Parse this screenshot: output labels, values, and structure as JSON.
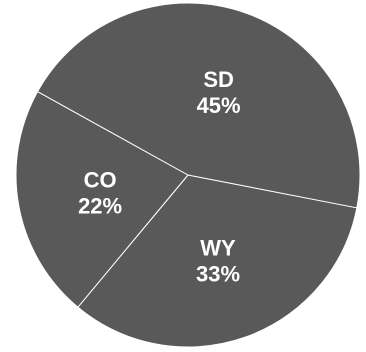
{
  "colors": {
    "slice_fill": "#595959",
    "slice_stroke": "#ffffff",
    "label_color": "#ffffff",
    "background": "#ffffff"
  },
  "chart_data": {
    "type": "pie",
    "title": "",
    "start_angle_deg": 11,
    "direction": "clockwise",
    "slices": [
      {
        "label": "WY",
        "value": 33,
        "value_text": "33%"
      },
      {
        "label": "CO",
        "value": 22,
        "value_text": "22%"
      },
      {
        "label": "SD",
        "value": 45,
        "value_text": "45%"
      }
    ],
    "legend": "none",
    "labels_inside": true
  }
}
